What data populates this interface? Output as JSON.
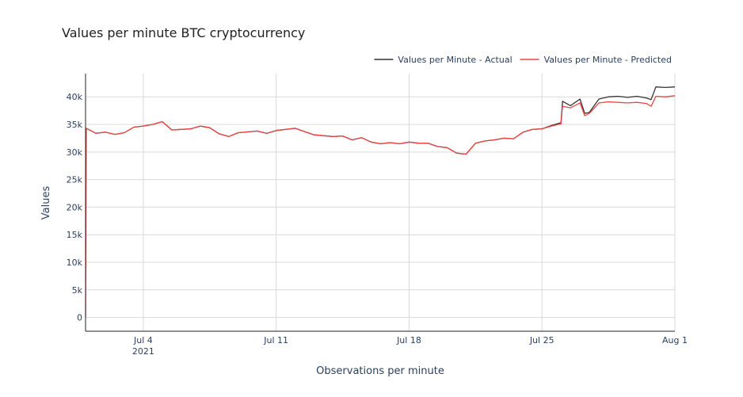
{
  "chart_data": {
    "type": "line",
    "title": "Values per minute BTC cryptocurrency",
    "xlabel": "Observations per minute",
    "ylabel": "Values",
    "grid": true,
    "legend_position": "top-right",
    "ylim": [
      -2500,
      44200
    ],
    "xlim": [
      "2021-06-30T23:00",
      "2021-08-01T00:00"
    ],
    "y_ticks": [
      0,
      5000,
      10000,
      15000,
      20000,
      25000,
      30000,
      35000,
      40000
    ],
    "y_tick_labels": [
      "0",
      "5k",
      "10k",
      "15k",
      "20k",
      "25k",
      "30k",
      "35k",
      "40k"
    ],
    "x_ticks": [
      "2021-07-04",
      "2021-07-11",
      "2021-07-18",
      "2021-07-25",
      "2021-08-01"
    ],
    "x_tick_labels": [
      "Jul 4",
      "Jul 11",
      "Jul 18",
      "Jul 25",
      "Aug 1"
    ],
    "x_tick_sublabel": "2021",
    "series": [
      {
        "name": "Values per Minute - Actual",
        "color": "#333333",
        "points": [
          [
            "2021-07-01T00:00",
            34300
          ],
          [
            "2021-07-01T12:00",
            33400
          ],
          [
            "2021-07-02T00:00",
            33600
          ],
          [
            "2021-07-02T12:00",
            33200
          ],
          [
            "2021-07-03T00:00",
            33500
          ],
          [
            "2021-07-03T12:00",
            34500
          ],
          [
            "2021-07-04T00:00",
            34700
          ],
          [
            "2021-07-04T12:00",
            35000
          ],
          [
            "2021-07-05T00:00",
            35500
          ],
          [
            "2021-07-05T12:00",
            34000
          ],
          [
            "2021-07-06T00:00",
            34100
          ],
          [
            "2021-07-06T12:00",
            34200
          ],
          [
            "2021-07-07T00:00",
            34700
          ],
          [
            "2021-07-07T12:00",
            34400
          ],
          [
            "2021-07-08T00:00",
            33300
          ],
          [
            "2021-07-08T12:00",
            32800
          ],
          [
            "2021-07-09T00:00",
            33500
          ],
          [
            "2021-07-10T00:00",
            33800
          ],
          [
            "2021-07-10T12:00",
            33400
          ],
          [
            "2021-07-11T00:00",
            33900
          ],
          [
            "2021-07-12T00:00",
            34300
          ],
          [
            "2021-07-12T12:00",
            33700
          ],
          [
            "2021-07-13T00:00",
            33100
          ],
          [
            "2021-07-14T00:00",
            32800
          ],
          [
            "2021-07-14T12:00",
            32900
          ],
          [
            "2021-07-15T00:00",
            32200
          ],
          [
            "2021-07-15T12:00",
            32600
          ],
          [
            "2021-07-16T00:00",
            31800
          ],
          [
            "2021-07-16T12:00",
            31500
          ],
          [
            "2021-07-17T00:00",
            31700
          ],
          [
            "2021-07-17T12:00",
            31500
          ],
          [
            "2021-07-18T00:00",
            31800
          ],
          [
            "2021-07-18T12:00",
            31600
          ],
          [
            "2021-07-19T00:00",
            31600
          ],
          [
            "2021-07-19T12:00",
            31000
          ],
          [
            "2021-07-20T00:00",
            30800
          ],
          [
            "2021-07-20T12:00",
            29800
          ],
          [
            "2021-07-21T00:00",
            29600
          ],
          [
            "2021-07-21T12:00",
            31600
          ],
          [
            "2021-07-22T00:00",
            32000
          ],
          [
            "2021-07-22T12:00",
            32200
          ],
          [
            "2021-07-23T00:00",
            32500
          ],
          [
            "2021-07-23T12:00",
            32400
          ],
          [
            "2021-07-24T00:00",
            33600
          ],
          [
            "2021-07-24T12:00",
            34100
          ],
          [
            "2021-07-25T00:00",
            34200
          ],
          [
            "2021-07-25T12:00",
            34800
          ],
          [
            "2021-07-26T00:00",
            35300
          ],
          [
            "2021-07-26T02:00",
            39200
          ],
          [
            "2021-07-26T12:00",
            38400
          ],
          [
            "2021-07-27T00:00",
            39600
          ],
          [
            "2021-07-27T06:00",
            37000
          ],
          [
            "2021-07-27T12:00",
            37200
          ],
          [
            "2021-07-28T00:00",
            39600
          ],
          [
            "2021-07-28T12:00",
            40000
          ],
          [
            "2021-07-29T00:00",
            40100
          ],
          [
            "2021-07-29T12:00",
            39900
          ],
          [
            "2021-07-30T00:00",
            40100
          ],
          [
            "2021-07-30T12:00",
            39800
          ],
          [
            "2021-07-30T18:00",
            39500
          ],
          [
            "2021-07-31T00:00",
            41800
          ],
          [
            "2021-07-31T12:00",
            41700
          ],
          [
            "2021-08-01T00:00",
            41800
          ]
        ]
      },
      {
        "name": "Values per Minute - Predicted",
        "color": "#ef4444",
        "points": [
          [
            "2021-06-30T23:00",
            0
          ],
          [
            "2021-07-01T00:00",
            34300
          ],
          [
            "2021-07-01T12:00",
            33400
          ],
          [
            "2021-07-02T00:00",
            33600
          ],
          [
            "2021-07-02T12:00",
            33200
          ],
          [
            "2021-07-03T00:00",
            33500
          ],
          [
            "2021-07-03T12:00",
            34500
          ],
          [
            "2021-07-04T00:00",
            34700
          ],
          [
            "2021-07-04T12:00",
            35000
          ],
          [
            "2021-07-05T00:00",
            35500
          ],
          [
            "2021-07-05T12:00",
            34000
          ],
          [
            "2021-07-06T00:00",
            34100
          ],
          [
            "2021-07-06T12:00",
            34200
          ],
          [
            "2021-07-07T00:00",
            34700
          ],
          [
            "2021-07-07T12:00",
            34400
          ],
          [
            "2021-07-08T00:00",
            33300
          ],
          [
            "2021-07-08T12:00",
            32800
          ],
          [
            "2021-07-09T00:00",
            33500
          ],
          [
            "2021-07-10T00:00",
            33800
          ],
          [
            "2021-07-10T12:00",
            33400
          ],
          [
            "2021-07-11T00:00",
            33900
          ],
          [
            "2021-07-12T00:00",
            34300
          ],
          [
            "2021-07-12T12:00",
            33700
          ],
          [
            "2021-07-13T00:00",
            33100
          ],
          [
            "2021-07-14T00:00",
            32800
          ],
          [
            "2021-07-14T12:00",
            32900
          ],
          [
            "2021-07-15T00:00",
            32200
          ],
          [
            "2021-07-15T12:00",
            32600
          ],
          [
            "2021-07-16T00:00",
            31800
          ],
          [
            "2021-07-16T12:00",
            31500
          ],
          [
            "2021-07-17T00:00",
            31700
          ],
          [
            "2021-07-17T12:00",
            31500
          ],
          [
            "2021-07-18T00:00",
            31800
          ],
          [
            "2021-07-18T12:00",
            31600
          ],
          [
            "2021-07-19T00:00",
            31600
          ],
          [
            "2021-07-19T12:00",
            31000
          ],
          [
            "2021-07-20T00:00",
            30800
          ],
          [
            "2021-07-20T12:00",
            29800
          ],
          [
            "2021-07-21T00:00",
            29600
          ],
          [
            "2021-07-21T12:00",
            31600
          ],
          [
            "2021-07-22T00:00",
            32000
          ],
          [
            "2021-07-22T12:00",
            32200
          ],
          [
            "2021-07-23T00:00",
            32500
          ],
          [
            "2021-07-23T12:00",
            32400
          ],
          [
            "2021-07-24T00:00",
            33600
          ],
          [
            "2021-07-24T12:00",
            34100
          ],
          [
            "2021-07-25T00:00",
            34200
          ],
          [
            "2021-07-25T12:00",
            34700
          ],
          [
            "2021-07-26T00:00",
            35100
          ],
          [
            "2021-07-26T02:00",
            38300
          ],
          [
            "2021-07-26T12:00",
            38000
          ],
          [
            "2021-07-27T00:00",
            38900
          ],
          [
            "2021-07-27T06:00",
            36600
          ],
          [
            "2021-07-27T12:00",
            37000
          ],
          [
            "2021-07-28T00:00",
            38900
          ],
          [
            "2021-07-28T12:00",
            39100
          ],
          [
            "2021-07-29T00:00",
            39000
          ],
          [
            "2021-07-29T12:00",
            38900
          ],
          [
            "2021-07-30T00:00",
            39000
          ],
          [
            "2021-07-30T12:00",
            38800
          ],
          [
            "2021-07-30T18:00",
            38300
          ],
          [
            "2021-07-31T00:00",
            40100
          ],
          [
            "2021-07-31T12:00",
            40000
          ],
          [
            "2021-08-01T00:00",
            40200
          ]
        ]
      }
    ]
  }
}
